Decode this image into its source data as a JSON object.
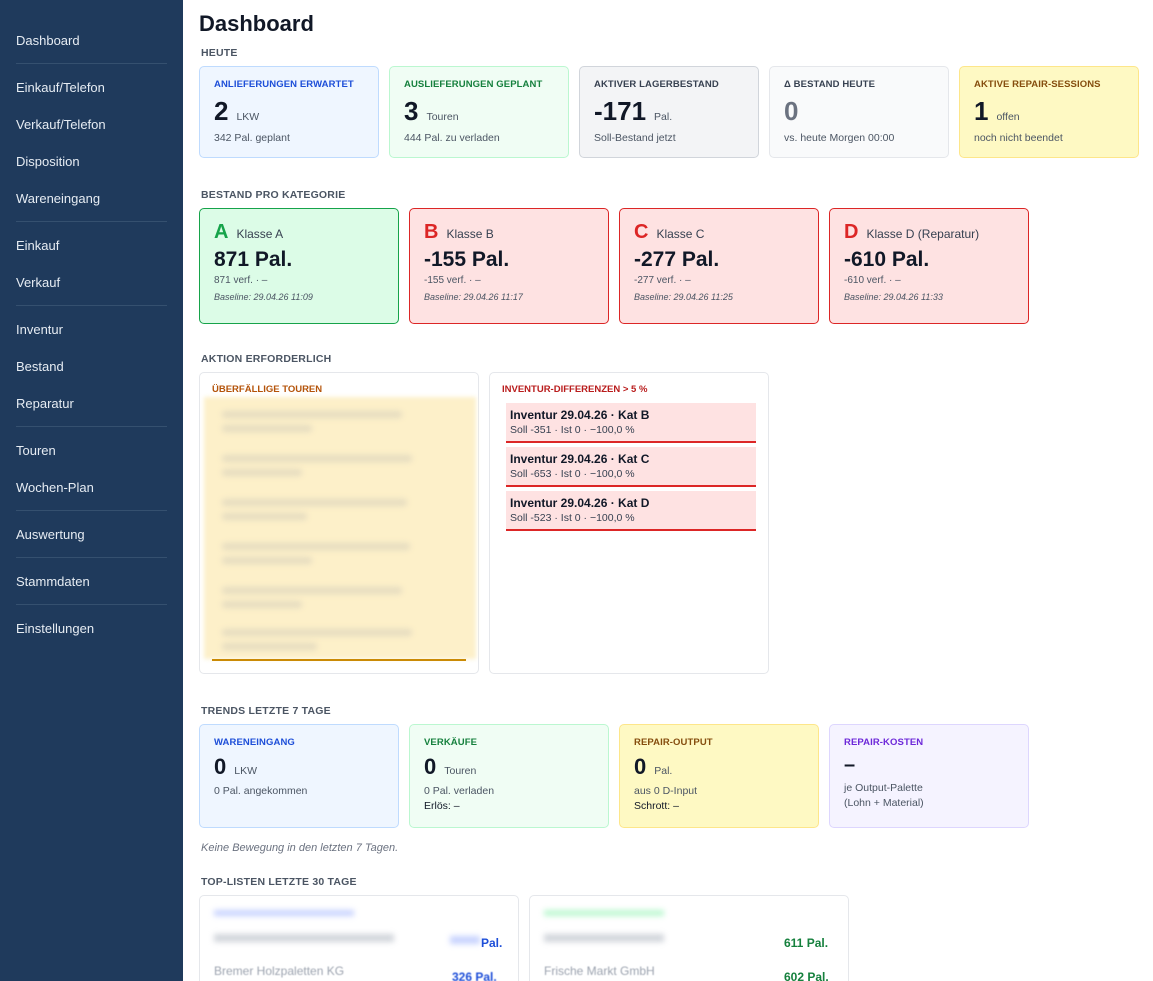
{
  "sidebar": {
    "items": [
      {
        "label": "Dashboard"
      },
      {
        "label": "Einkauf/Telefon"
      },
      {
        "label": "Verkauf/Telefon"
      },
      {
        "label": "Disposition"
      },
      {
        "label": "Wareneingang"
      },
      {
        "label": "Einkauf"
      },
      {
        "label": "Verkauf"
      },
      {
        "label": "Inventur"
      },
      {
        "label": "Bestand"
      },
      {
        "label": "Reparatur"
      },
      {
        "label": "Touren"
      },
      {
        "label": "Wochen-Plan"
      },
      {
        "label": "Auswertung"
      },
      {
        "label": "Stammdaten"
      },
      {
        "label": "Einstellungen"
      }
    ]
  },
  "page": {
    "title": "Dashboard"
  },
  "heute": {
    "label": "HEUTE",
    "cards": [
      {
        "label": "ANLIEFERUNGEN ERWARTET",
        "value": "2",
        "unit": "LKW",
        "sub": "342 Pal. geplant"
      },
      {
        "label": "AUSLIEFERUNGEN GEPLANT",
        "value": "3",
        "unit": "Touren",
        "sub": "444 Pal. zu verladen"
      },
      {
        "label": "AKTIVER LAGERBESTAND",
        "value": "-171",
        "unit": "Pal.",
        "sub": "Soll-Bestand jetzt"
      },
      {
        "label": "Δ BESTAND HEUTE",
        "value": "0",
        "unit": "",
        "sub": "vs. heute Morgen 00:00"
      },
      {
        "label": "AKTIVE REPAIR-SESSIONS",
        "value": "1",
        "unit": "offen",
        "sub": "noch nicht beendet"
      }
    ]
  },
  "kategorie": {
    "label": "BESTAND PRO KATEGORIE",
    "cards": [
      {
        "letter": "A",
        "name": "Klasse A",
        "value": "871 Pal.",
        "sub": "871 verf. · –",
        "baseline": "Baseline: 29.04.26 11:09"
      },
      {
        "letter": "B",
        "name": "Klasse B",
        "value": "-155 Pal.",
        "sub": "-155 verf. · –",
        "baseline": "Baseline: 29.04.26 11:17"
      },
      {
        "letter": "C",
        "name": "Klasse C",
        "value": "-277 Pal.",
        "sub": "-277 verf. · –",
        "baseline": "Baseline: 29.04.26 11:25"
      },
      {
        "letter": "D",
        "name": "Klasse D (Reparatur)",
        "value": "-610 Pal.",
        "sub": "-610 verf. · –",
        "baseline": "Baseline: 29.04.26 11:33"
      }
    ]
  },
  "aktion": {
    "label": "AKTION ERFORDERLICH",
    "overdue_title": "ÜBERFÄLLIGE TOUREN",
    "diff_title": "INVENTUR-DIFFERENZEN > 5 %",
    "diffs": [
      {
        "title": "Inventur 29.04.26 · Kat B",
        "sub": "Soll -351 · Ist 0 · −100,0 %"
      },
      {
        "title": "Inventur 29.04.26 · Kat C",
        "sub": "Soll -653 · Ist 0 · −100,0 %"
      },
      {
        "title": "Inventur 29.04.26 · Kat D",
        "sub": "Soll -523 · Ist 0 · −100,0 %"
      }
    ]
  },
  "trends": {
    "label": "TRENDS LETZTE 7 TAGE",
    "cards": [
      {
        "label": "WARENEINGANG",
        "value": "0",
        "unit": "LKW",
        "sub": "0 Pal. angekommen",
        "sub2": ""
      },
      {
        "label": "VERKÄUFE",
        "value": "0",
        "unit": "Touren",
        "sub": "0 Pal. verladen",
        "sub2": "Erlös:  –"
      },
      {
        "label": "REPAIR-OUTPUT",
        "value": "0",
        "unit": "Pal.",
        "sub": "aus  0 D-Input",
        "sub2": "Schrott:  –"
      },
      {
        "label": "REPAIR-KOSTEN",
        "value": "–",
        "unit": "",
        "sub": "je Output-Palette",
        "sub2": "(Lohn + Material)"
      }
    ],
    "note": "Keine Bewegung in den letzten 7 Tagen."
  },
  "toplisten": {
    "label": "TOP-LISTEN LETZTE 30 TAGE",
    "left": {
      "row2_name": "Bremer Holzpaletten KG",
      "row1_val": "Pal.",
      "row2_val": "326 Pal."
    },
    "right": {
      "row2_name": "Frische Markt GmbH",
      "row1_val": "611 Pal.",
      "row2_val": "602 Pal."
    }
  },
  "colors": {
    "sidebar": "#1f3a5c",
    "danger": "#dc2626",
    "success": "#16a34a"
  }
}
